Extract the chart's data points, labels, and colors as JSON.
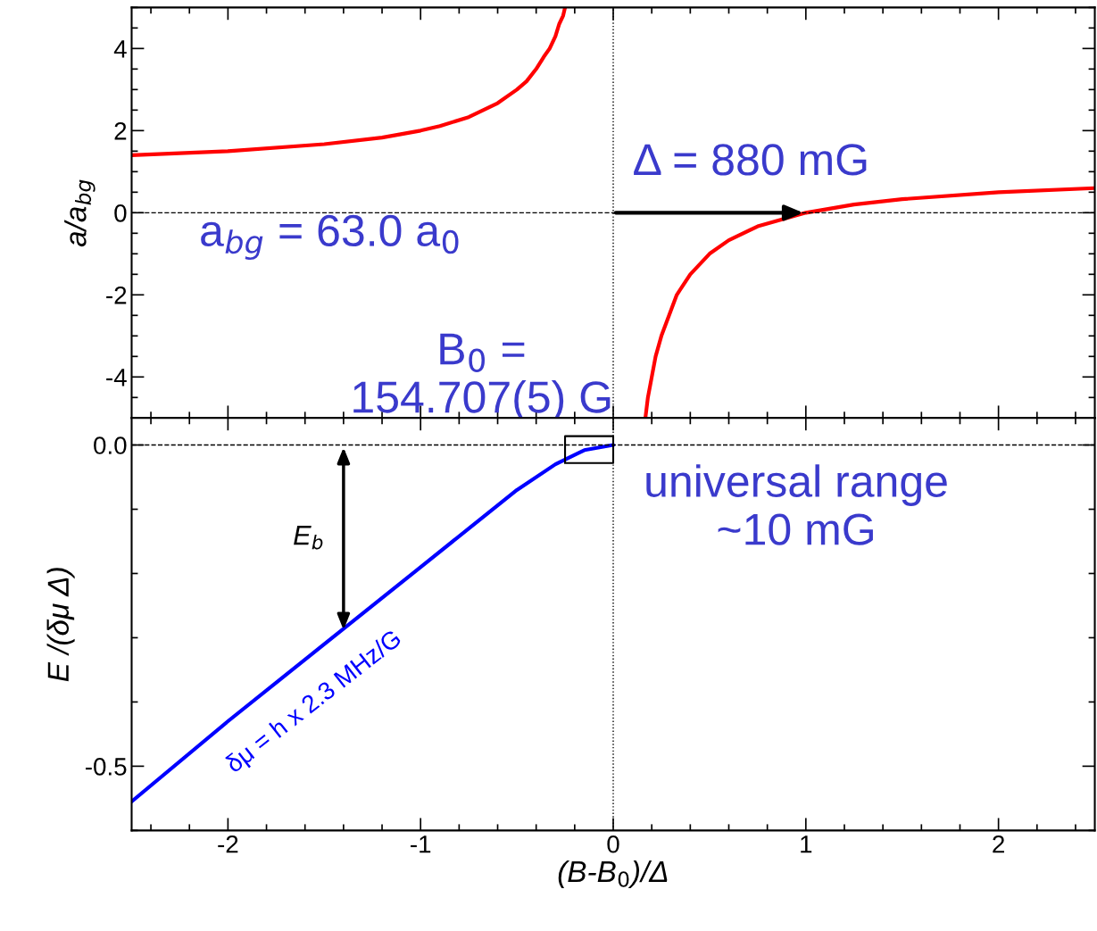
{
  "chart_data": [
    {
      "type": "line",
      "ylabel": "a/a$_{bg}$",
      "xlim": [
        -2.5,
        2.5
      ],
      "ylim": [
        -5,
        5
      ],
      "xticks": [
        -2,
        -1,
        0,
        1,
        2
      ],
      "yticks": [
        -4,
        -2,
        0,
        2,
        4
      ],
      "tick_labels": "y",
      "grid": false,
      "legend": false,
      "marker": "none",
      "line_style": "solid",
      "series": [
        {
          "color": "#ff0000",
          "x": [
            -2.5,
            -2,
            -1.5,
            -1.2,
            -1,
            -0.9,
            -0.75,
            -0.6,
            -0.5,
            -0.45,
            -0.4,
            -0.36,
            -0.33,
            -0.3,
            -0.28,
            -0.26,
            -0.25
          ],
          "values": [
            1.4,
            1.5,
            1.67,
            1.83,
            2.0,
            2.11,
            2.33,
            2.67,
            3.0,
            3.2,
            3.5,
            3.8,
            4.0,
            4.3,
            4.6,
            4.8,
            5.0
          ]
        },
        {
          "color": "#ff0000",
          "x": [
            0.167,
            0.18,
            0.2,
            0.22,
            0.25,
            0.29,
            0.33,
            0.4,
            0.5,
            0.6,
            0.75,
            1,
            1.25,
            1.5,
            2,
            2.5
          ],
          "values": [
            -5,
            -4.5,
            -4,
            -3.5,
            -3,
            -2.5,
            -2,
            -1.5,
            -1,
            -0.67,
            -0.33,
            0,
            0.2,
            0.33,
            0.5,
            0.6
          ]
        }
      ],
      "ref_lines": [
        {
          "axis": "y",
          "value": 0,
          "line_style": "dashed",
          "color": "#000000"
        },
        {
          "axis": "x",
          "value": 0,
          "line_style": "dotted",
          "color": "#000000"
        }
      ],
      "annotations": [
        "a$_{bg}$ = 63.0 a$_{0}$",
        {
          "text": "Δ = 880 mG",
          "x": 1,
          "y": 0
        },
        {
          "text": "B$_{0}$ =\n154.707(5) G",
          "x": 0,
          "y": -4
        }
      ]
    },
    {
      "type": "line",
      "xlabel": "(B-B$_{0}$)/Δ",
      "ylabel": "E /(δμ Δ)",
      "xlim": [
        -2.5,
        2.5
      ],
      "ylim": [
        -0.6,
        0.042
      ],
      "xticks": [
        -2,
        -1,
        0,
        1,
        2
      ],
      "yticks": [
        {
          "value": -0.5,
          "label": "-0.5"
        },
        {
          "value": 0,
          "label": "0.0"
        }
      ],
      "grid": false,
      "legend": false,
      "marker": "none",
      "line_style": "solid",
      "series": [
        {
          "color": "#0000ff",
          "x": [
            -2.5,
            -2,
            -1.5,
            -1,
            -0.75,
            -0.5,
            -0.3,
            -0.15,
            0
          ],
          "values": [
            -0.555,
            -0.43,
            -0.31,
            -0.19,
            -0.13,
            -0.07,
            -0.03,
            -0.008,
            0
          ]
        }
      ],
      "ref_lines": [
        {
          "axis": "y",
          "value": 0,
          "line_style": "dashed",
          "color": "#000000"
        },
        {
          "axis": "x",
          "value": 0,
          "line_style": "dotted",
          "color": "#000000"
        }
      ],
      "annotations": [
        "E$_{b}$",
        "δμ = h x 2.3 MHz/G",
        "universal range\n~10 mG"
      ]
    }
  ]
}
